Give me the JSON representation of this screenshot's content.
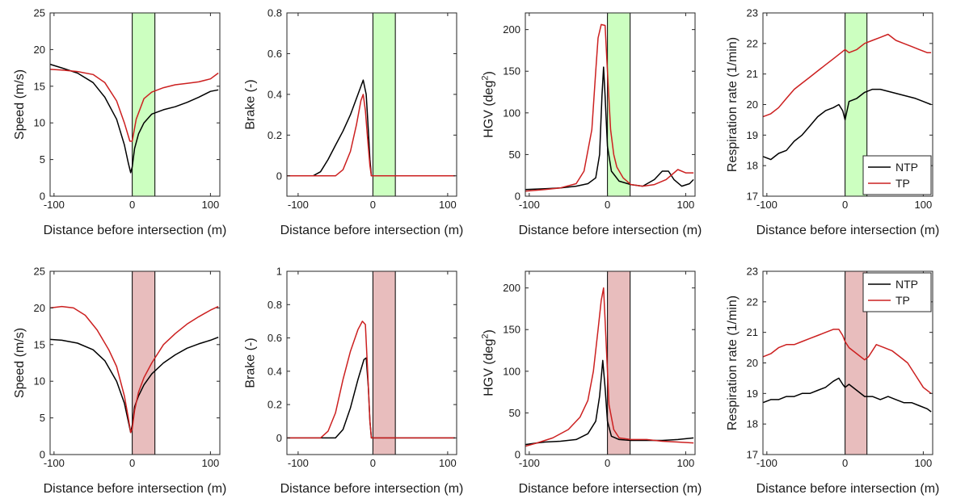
{
  "colors": {
    "NTP": "#000000",
    "TP": "#cc2020",
    "green_band": "#ccffc0",
    "red_band": "#e8bdbd"
  },
  "chart_data": [
    {
      "type": "line",
      "ylabel": "Speed (m/s)",
      "xlabel": "Distance before intersection (m)",
      "xlim": [
        -105,
        112
      ],
      "ylim": [
        0,
        25
      ],
      "xticks": [
        -100,
        0,
        100
      ],
      "xtick_labels": [
        "-100",
        "0",
        "100"
      ],
      "yticks": [
        0,
        5,
        10,
        15,
        20,
        25
      ],
      "ytick_labels": [
        "0",
        "5",
        "10",
        "15",
        "20",
        "25"
      ],
      "band": {
        "from": 0,
        "to": 29,
        "color": "green"
      },
      "series": [
        {
          "name": "NTP",
          "x": [
            -105,
            -90,
            -70,
            -50,
            -35,
            -20,
            -10,
            -5,
            -2,
            0,
            3,
            8,
            15,
            25,
            40,
            55,
            70,
            85,
            100,
            110
          ],
          "y": [
            18,
            17.5,
            16.8,
            15.5,
            13.5,
            10.5,
            7,
            4.5,
            3.2,
            4,
            6.5,
            8.5,
            10,
            11.2,
            11.8,
            12.2,
            12.8,
            13.5,
            14.3,
            14.5
          ]
        },
        {
          "name": "TP",
          "x": [
            -105,
            -90,
            -70,
            -50,
            -35,
            -20,
            -10,
            -3,
            0,
            5,
            15,
            25,
            40,
            55,
            70,
            85,
            100,
            110
          ],
          "y": [
            17.3,
            17.2,
            17,
            16.6,
            15.5,
            13,
            10,
            7.5,
            7.5,
            10.5,
            13.3,
            14.2,
            14.8,
            15.2,
            15.4,
            15.6,
            16,
            16.8
          ]
        }
      ],
      "legend": null
    },
    {
      "type": "line",
      "ylabel": "Brake (-)",
      "xlabel": "Distance before intersection (m)",
      "xlim": [
        -115,
        112
      ],
      "ylim": [
        -0.1,
        0.8
      ],
      "xticks": [
        -100,
        0,
        100
      ],
      "xtick_labels": [
        "-100",
        "0",
        "100"
      ],
      "yticks": [
        0,
        0.2,
        0.4,
        0.6,
        0.8
      ],
      "ytick_labels": [
        "0",
        "0.2",
        "0.4",
        "0.6",
        "0.8"
      ],
      "band": {
        "from": 0,
        "to": 30,
        "color": "green"
      },
      "series": [
        {
          "name": "NTP",
          "x": [
            -115,
            -80,
            -70,
            -60,
            -50,
            -40,
            -30,
            -20,
            -13,
            -9,
            -6,
            -4,
            -2,
            110
          ],
          "y": [
            0,
            0,
            0.02,
            0.08,
            0.15,
            0.22,
            0.3,
            0.4,
            0.47,
            0.4,
            0.22,
            0.08,
            0,
            0
          ]
        },
        {
          "name": "TP",
          "x": [
            -115,
            -50,
            -40,
            -30,
            -22,
            -16,
            -13,
            -10,
            -7,
            -4,
            -2,
            110
          ],
          "y": [
            0,
            0,
            0.03,
            0.12,
            0.25,
            0.37,
            0.4,
            0.32,
            0.18,
            0.05,
            0,
            0
          ]
        }
      ],
      "legend": null
    },
    {
      "type": "line",
      "ylabel": "HGV (deg²)",
      "ylabel_main": "HGV (deg",
      "ylabel_sup": "2",
      "ylabel_end": ")",
      "xlabel": "Distance before intersection (m)",
      "xlim": [
        -105,
        112
      ],
      "ylim": [
        0,
        220
      ],
      "xticks": [
        -100,
        0,
        100
      ],
      "xtick_labels": [
        "-100",
        "0",
        "100"
      ],
      "yticks": [
        0,
        50,
        100,
        150,
        200
      ],
      "ytick_labels": [
        "0",
        "50",
        "100",
        "150",
        "200"
      ],
      "band": {
        "from": 0,
        "to": 29,
        "color": "green"
      },
      "series": [
        {
          "name": "NTP",
          "x": [
            -105,
            -80,
            -60,
            -40,
            -25,
            -15,
            -10,
            -7,
            -5,
            -3,
            0,
            5,
            15,
            30,
            45,
            60,
            70,
            78,
            85,
            95,
            105,
            110
          ],
          "y": [
            8,
            9,
            10,
            12,
            15,
            22,
            50,
            120,
            155,
            120,
            60,
            30,
            18,
            14,
            12,
            20,
            30,
            30,
            20,
            12,
            15,
            20
          ]
        },
        {
          "name": "TP",
          "x": [
            -105,
            -80,
            -60,
            -40,
            -30,
            -20,
            -15,
            -12,
            -8,
            -3,
            0,
            4,
            8,
            12,
            20,
            30,
            45,
            60,
            75,
            90,
            100,
            110
          ],
          "y": [
            6,
            8,
            10,
            15,
            30,
            80,
            150,
            190,
            206,
            205,
            150,
            80,
            50,
            35,
            22,
            14,
            12,
            14,
            20,
            32,
            28,
            28
          ]
        }
      ],
      "legend": null
    },
    {
      "type": "line",
      "ylabel": "Respiration rate (1/min)",
      "xlabel": "Distance before intersection (m)",
      "xlim": [
        -105,
        112
      ],
      "ylim": [
        17,
        23
      ],
      "xticks": [
        -100,
        0,
        100
      ],
      "xtick_labels": [
        "-100",
        "0",
        "100"
      ],
      "yticks": [
        17,
        18,
        19,
        20,
        21,
        22,
        23
      ],
      "ytick_labels": [
        "17",
        "18",
        "19",
        "20",
        "21",
        "22",
        "23"
      ],
      "band": {
        "from": 0,
        "to": 28,
        "color": "green"
      },
      "series": [
        {
          "name": "NTP",
          "x": [
            -105,
            -95,
            -85,
            -75,
            -65,
            -55,
            -45,
            -35,
            -25,
            -15,
            -8,
            -3,
            0,
            5,
            15,
            25,
            35,
            45,
            60,
            75,
            90,
            100,
            110
          ],
          "y": [
            18.3,
            18.2,
            18.4,
            18.5,
            18.8,
            19,
            19.3,
            19.6,
            19.8,
            19.9,
            20,
            19.8,
            19.5,
            20.1,
            20.2,
            20.4,
            20.5,
            20.5,
            20.4,
            20.3,
            20.2,
            20.1,
            20
          ]
        },
        {
          "name": "TP",
          "x": [
            -105,
            -95,
            -85,
            -75,
            -65,
            -55,
            -45,
            -35,
            -25,
            -15,
            -5,
            0,
            5,
            15,
            25,
            35,
            45,
            55,
            65,
            75,
            85,
            95,
            105,
            110
          ],
          "y": [
            19.6,
            19.7,
            19.9,
            20.2,
            20.5,
            20.7,
            20.9,
            21.1,
            21.3,
            21.5,
            21.7,
            21.8,
            21.7,
            21.8,
            22,
            22.1,
            22.2,
            22.3,
            22.1,
            22,
            21.9,
            21.8,
            21.7,
            21.7
          ]
        }
      ],
      "legend": {
        "position": "bottom-right"
      }
    },
    {
      "type": "line",
      "ylabel": "Speed (m/s)",
      "xlabel": "Distance before intersection (m)",
      "xlim": [
        -105,
        112
      ],
      "ylim": [
        0,
        25
      ],
      "xticks": [
        -100,
        0,
        100
      ],
      "xtick_labels": [
        "-100",
        "0",
        "100"
      ],
      "yticks": [
        0,
        5,
        10,
        15,
        20,
        25
      ],
      "ytick_labels": [
        "0",
        "5",
        "10",
        "15",
        "20",
        "25"
      ],
      "band": {
        "from": 0,
        "to": 29,
        "color": "red"
      },
      "series": [
        {
          "name": "NTP",
          "x": [
            -105,
            -90,
            -70,
            -50,
            -35,
            -20,
            -10,
            -5,
            -2,
            0,
            3,
            8,
            15,
            25,
            40,
            55,
            70,
            85,
            100,
            110
          ],
          "y": [
            15.7,
            15.6,
            15.2,
            14.3,
            12.8,
            10,
            7,
            4.5,
            3,
            4,
            6.5,
            8,
            9.5,
            11,
            12.5,
            13.6,
            14.5,
            15.1,
            15.6,
            16
          ]
        },
        {
          "name": "TP",
          "x": [
            -105,
            -90,
            -75,
            -60,
            -45,
            -30,
            -20,
            -10,
            -5,
            -2,
            0,
            3,
            8,
            15,
            25,
            40,
            55,
            70,
            85,
            100,
            110
          ],
          "y": [
            20,
            20.2,
            20,
            19,
            17,
            14.3,
            12,
            8,
            5,
            3,
            3.5,
            6,
            8.5,
            10.5,
            12.5,
            15,
            16.5,
            17.8,
            18.8,
            19.7,
            20.2
          ]
        }
      ],
      "legend": null
    },
    {
      "type": "line",
      "ylabel": "Brake (-)",
      "xlabel": "Distance before intersection (m)",
      "xlim": [
        -115,
        112
      ],
      "ylim": [
        -0.1,
        1.0
      ],
      "xticks": [
        -100,
        0,
        100
      ],
      "xtick_labels": [
        "-100",
        "0",
        "100"
      ],
      "yticks": [
        0,
        0.2,
        0.4,
        0.6,
        0.8,
        1
      ],
      "ytick_labels": [
        "0",
        "0.2",
        "0.4",
        "0.6",
        "0.8",
        "1"
      ],
      "band": {
        "from": 0,
        "to": 30,
        "color": "red"
      },
      "series": [
        {
          "name": "NTP",
          "x": [
            -115,
            -50,
            -40,
            -30,
            -20,
            -12,
            -9,
            -6,
            -4,
            -2,
            110
          ],
          "y": [
            0,
            0,
            0.05,
            0.18,
            0.35,
            0.47,
            0.48,
            0.3,
            0.1,
            0,
            0
          ]
        },
        {
          "name": "TP",
          "x": [
            -115,
            -70,
            -60,
            -50,
            -40,
            -30,
            -20,
            -14,
            -10,
            -7,
            -4,
            -2,
            110
          ],
          "y": [
            0,
            0,
            0.04,
            0.15,
            0.35,
            0.52,
            0.65,
            0.7,
            0.68,
            0.4,
            0.1,
            0,
            0
          ]
        }
      ],
      "legend": null
    },
    {
      "type": "line",
      "ylabel": "HGV (deg²)",
      "ylabel_main": "HGV (deg",
      "ylabel_sup": "2",
      "ylabel_end": ")",
      "xlabel": "Distance before intersection (m)",
      "xlim": [
        -105,
        112
      ],
      "ylim": [
        0,
        220
      ],
      "xticks": [
        -100,
        0,
        100
      ],
      "xtick_labels": [
        "-100",
        "0",
        "100"
      ],
      "yticks": [
        0,
        50,
        100,
        150,
        200
      ],
      "ytick_labels": [
        "0",
        "50",
        "100",
        "150",
        "200"
      ],
      "band": {
        "from": 0,
        "to": 29,
        "color": "red"
      },
      "series": [
        {
          "name": "NTP",
          "x": [
            -105,
            -90,
            -80,
            -60,
            -40,
            -25,
            -15,
            -10,
            -6,
            -3,
            0,
            5,
            15,
            30,
            50,
            70,
            90,
            110
          ],
          "y": [
            12,
            14,
            15,
            16,
            18,
            25,
            40,
            70,
            113,
            80,
            40,
            22,
            18,
            17,
            17,
            17,
            18,
            20
          ]
        },
        {
          "name": "TP",
          "x": [
            -105,
            -90,
            -70,
            -50,
            -35,
            -25,
            -18,
            -12,
            -8,
            -5,
            -2,
            2,
            8,
            15,
            30,
            50,
            70,
            90,
            110
          ],
          "y": [
            10,
            14,
            20,
            30,
            45,
            65,
            100,
            150,
            185,
            200,
            140,
            60,
            30,
            20,
            18,
            18,
            16,
            15,
            14
          ]
        }
      ],
      "legend": null
    },
    {
      "type": "line",
      "ylabel": "Respiration rate (1/min)",
      "xlabel": "Distance before intersection (m)",
      "xlim": [
        -105,
        112
      ],
      "ylim": [
        17,
        23
      ],
      "xticks": [
        -100,
        0,
        100
      ],
      "xtick_labels": [
        "-100",
        "0",
        "100"
      ],
      "yticks": [
        17,
        18,
        19,
        20,
        21,
        22,
        23
      ],
      "ytick_labels": [
        "17",
        "18",
        "19",
        "20",
        "21",
        "22",
        "23"
      ],
      "band": {
        "from": 0,
        "to": 28,
        "color": "red"
      },
      "series": [
        {
          "name": "NTP",
          "x": [
            -105,
            -95,
            -85,
            -75,
            -65,
            -55,
            -45,
            -35,
            -25,
            -15,
            -8,
            -3,
            0,
            5,
            15,
            25,
            35,
            45,
            55,
            65,
            75,
            85,
            95,
            105,
            110
          ],
          "y": [
            18.7,
            18.8,
            18.8,
            18.9,
            18.9,
            19,
            19,
            19.1,
            19.2,
            19.4,
            19.5,
            19.3,
            19.2,
            19.3,
            19.1,
            18.9,
            18.9,
            18.8,
            18.9,
            18.8,
            18.7,
            18.7,
            18.6,
            18.5,
            18.4
          ]
        },
        {
          "name": "TP",
          "x": [
            -105,
            -95,
            -85,
            -75,
            -65,
            -55,
            -45,
            -35,
            -25,
            -15,
            -8,
            -3,
            0,
            5,
            15,
            25,
            30,
            40,
            50,
            60,
            70,
            80,
            90,
            100,
            110
          ],
          "y": [
            20.2,
            20.3,
            20.5,
            20.6,
            20.6,
            20.7,
            20.8,
            20.9,
            21,
            21.1,
            21.1,
            20.9,
            20.7,
            20.5,
            20.3,
            20.1,
            20.2,
            20.6,
            20.5,
            20.4,
            20.2,
            20,
            19.6,
            19.2,
            19
          ]
        }
      ],
      "legend": {
        "position": "top-right"
      }
    }
  ]
}
